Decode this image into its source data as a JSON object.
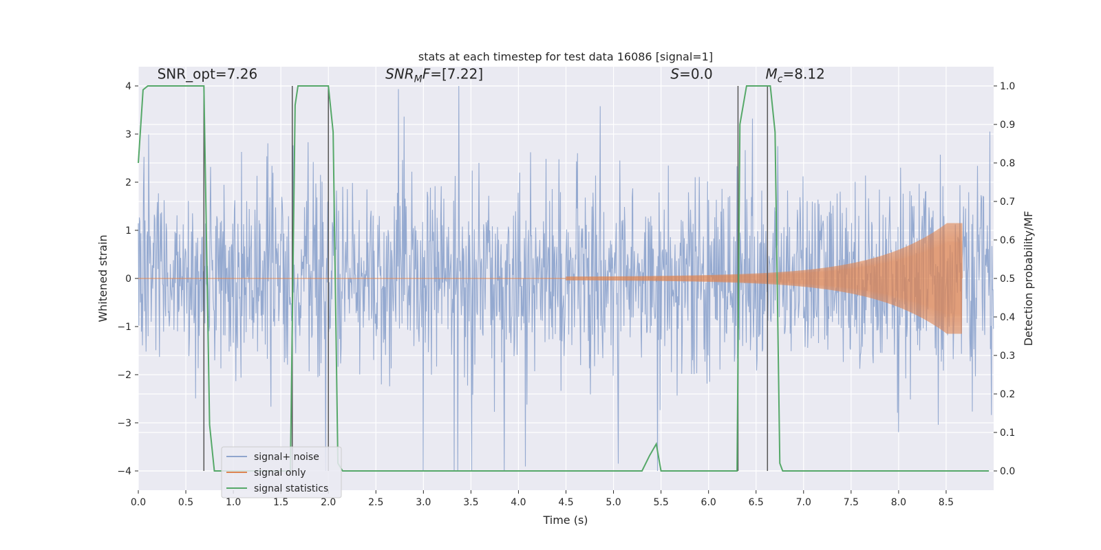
{
  "chart_data": {
    "type": "line",
    "title": "stats at each timestep for test data 16086 [signal=1]",
    "xlabel": "Time (s)",
    "ylabel_left": "Whitened strain",
    "ylabel_right": "Detection probability/MF",
    "xlim": [
      0,
      9
    ],
    "ylim_left": [
      -4.4,
      4.4
    ],
    "ylim_right": [
      -0.05,
      1.05
    ],
    "x_ticks": [
      "0.0",
      "0.5",
      "1.0",
      "1.5",
      "2.0",
      "2.5",
      "3.0",
      "3.5",
      "4.0",
      "4.5",
      "5.0",
      "5.5",
      "6.0",
      "6.5",
      "7.0",
      "7.5",
      "8.0",
      "8.5"
    ],
    "y_ticks_left": [
      "4",
      "3",
      "2",
      "1",
      "0",
      "−1",
      "−2",
      "−3",
      "−4"
    ],
    "y_ticks_right": [
      "1.0",
      "0.9",
      "0.8",
      "0.7",
      "0.6",
      "0.5",
      "0.4",
      "0.3",
      "0.2",
      "0.1",
      "0.0"
    ],
    "grid": true,
    "legend_position": "bottom-left",
    "annotations": [
      {
        "id": "snr-opt",
        "text": "SNR_opt=7.26",
        "x": 0.2,
        "y": 4.15
      },
      {
        "id": "snr-mf",
        "parts": [
          {
            "t": "SNR",
            "italic": true
          },
          {
            "t": "M",
            "italic": true,
            "sub": true
          },
          {
            "t": "F",
            "italic": true
          },
          {
            "t": "=[7.22]",
            "italic": false
          }
        ],
        "x": 2.6,
        "y": 4.15
      },
      {
        "id": "s-stat",
        "parts": [
          {
            "t": "S",
            "italic": true
          },
          {
            "t": "=0.0",
            "italic": false
          }
        ],
        "x": 5.6,
        "y": 4.15
      },
      {
        "id": "chirp-mass",
        "parts": [
          {
            "t": "M",
            "italic": true
          },
          {
            "t": "c",
            "italic": true,
            "sub": true
          },
          {
            "t": "=8.12",
            "italic": false
          }
        ],
        "x": 6.6,
        "y": 4.15
      }
    ],
    "vertical_lines": [
      0.69,
      1.62,
      2.0,
      6.31,
      6.62
    ],
    "series": [
      {
        "name": "signal+ noise",
        "axis": "left",
        "color": "#8fa5cd",
        "style": "noise",
        "x_range": [
          0,
          9
        ],
        "amplitude_range": [
          -4.0,
          4.0
        ]
      },
      {
        "name": "signal only",
        "axis": "left",
        "color": "#dd8452",
        "style": "chirp",
        "start": 4.5,
        "end": 8.67,
        "peak_amplitude": 1.15
      },
      {
        "name": "signal statistics",
        "axis": "right",
        "color": "#55a868",
        "x": [
          0,
          0.05,
          0.1,
          0.2,
          0.3,
          0.4,
          0.5,
          0.6,
          0.69,
          0.75,
          0.8,
          1.0,
          1.2,
          1.4,
          1.55,
          1.6,
          1.65,
          1.68,
          1.7,
          1.8,
          1.9,
          2.0,
          2.05,
          2.1,
          2.15,
          2.2,
          2.5,
          3.0,
          3.5,
          4.0,
          4.5,
          5.0,
          5.3,
          5.38,
          5.45,
          5.5,
          5.6,
          6.0,
          6.25,
          6.3,
          6.33,
          6.4,
          6.5,
          6.6,
          6.65,
          6.7,
          6.75,
          6.78,
          6.82,
          7.0,
          7.5,
          8.0,
          8.5,
          8.95
        ],
        "y": [
          0.8,
          0.99,
          1.0,
          1.0,
          1.0,
          1.0,
          1.0,
          1.0,
          1.0,
          0.12,
          0.0,
          0.0,
          0.0,
          0.0,
          0.0,
          0.0,
          0.95,
          1.0,
          1.0,
          1.0,
          1.0,
          1.0,
          0.88,
          0.02,
          0.0,
          0.0,
          0.0,
          0.0,
          0.0,
          0.0,
          0.0,
          0.0,
          0.0,
          0.04,
          0.07,
          0.0,
          0.0,
          0.0,
          0.0,
          0.0,
          0.9,
          1.0,
          1.0,
          1.0,
          1.0,
          0.88,
          0.02,
          0.0,
          0.0,
          0.0,
          0.0,
          0.0,
          0.0,
          0.0
        ]
      }
    ]
  },
  "colors": {
    "plot_bg": "#eaeaf2",
    "grid": "#ffffff",
    "text": "#262626",
    "vline": "#555555"
  }
}
